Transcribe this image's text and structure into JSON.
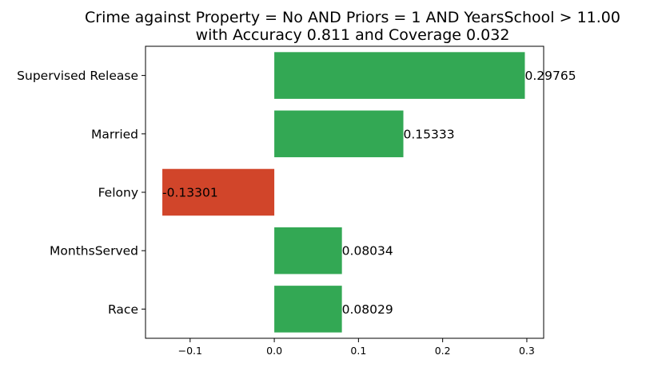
{
  "chart_data": {
    "type": "bar",
    "orientation": "horizontal",
    "title_lines": [
      "Crime against Property = No AND Priors = 1 AND YearsSchool > 11.00",
      "with Accuracy 0.811 and Coverage 0.032"
    ],
    "categories": [
      "Supervised Release",
      "Married",
      "Felony",
      "MonthsServed",
      "Race"
    ],
    "values": [
      0.29765,
      0.15333,
      -0.13301,
      0.08034,
      0.08029
    ],
    "value_labels": [
      "0.29765",
      "0.15333",
      "-0.13301",
      "0.08034",
      "0.08029"
    ],
    "xlim": [
      -0.153,
      0.32
    ],
    "xticks": [
      -0.1,
      0.0,
      0.1,
      0.2,
      0.3
    ],
    "xtick_labels": [
      "−0.1",
      "0.0",
      "0.1",
      "0.2",
      "0.3"
    ],
    "positive_color": "#33a854",
    "negative_color": "#d1452a",
    "grid": false,
    "xlabel": "",
    "ylabel": ""
  }
}
